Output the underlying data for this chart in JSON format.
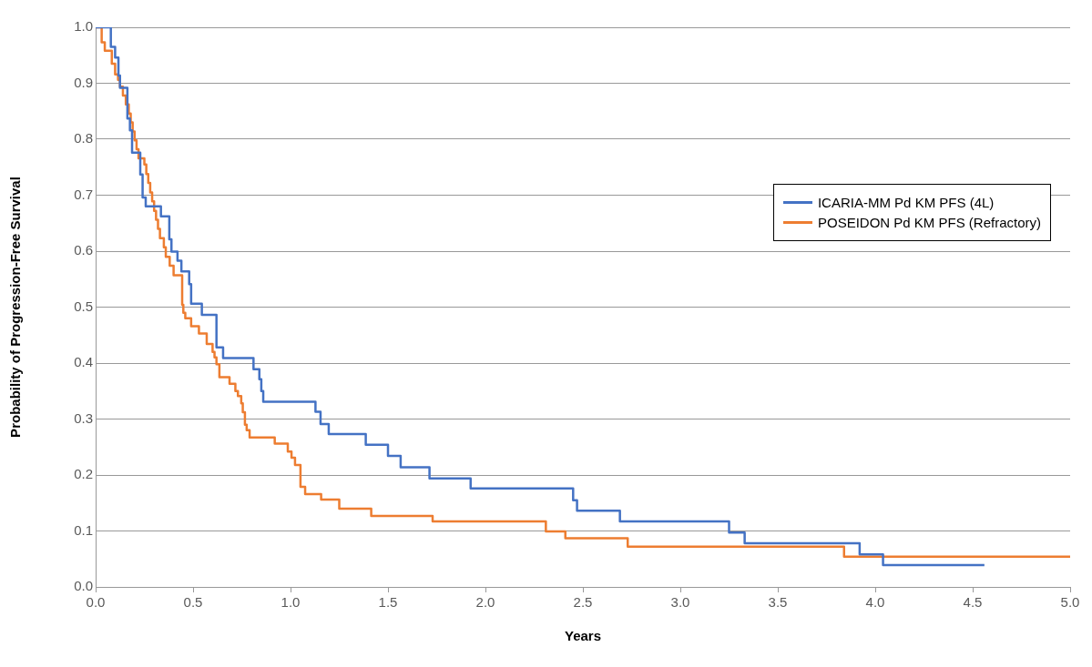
{
  "chart_data": {
    "type": "step",
    "xlabel": "Years",
    "ylabel": "Probability of Progression-Free Survival",
    "xlim": [
      0,
      5
    ],
    "xticks": [
      {
        "value": 0,
        "label": "0.0"
      },
      0.5,
      {
        "value": 1,
        "label": "1.0"
      },
      1.5,
      {
        "value": 2,
        "label": "2.0"
      },
      2.5,
      {
        "value": 3,
        "label": "3.0"
      },
      3.5,
      {
        "value": 4,
        "label": "4.0"
      },
      4.5,
      {
        "value": 5,
        "label": "5.0"
      }
    ],
    "ylim": [
      0,
      1
    ],
    "yticks": [
      {
        "value": 0,
        "label": "0.0"
      },
      0.1,
      0.2,
      0.3,
      0.4,
      0.5,
      0.6,
      0.7,
      0.8,
      0.9,
      {
        "value": 1,
        "label": "1.0"
      }
    ],
    "grid": "y",
    "legend": "right",
    "marker": "none",
    "series": [
      {
        "name": "ICARIA-MM Pd KM PFS (4L)",
        "color": "#4472c4",
        "x": [
          0,
          0.078,
          0.1,
          0.117,
          0.125,
          0.163,
          0.176,
          0.187,
          0.229,
          0.241,
          0.257,
          0.335,
          0.378,
          0.389,
          0.42,
          0.44,
          0.48,
          0.49,
          0.545,
          0.62,
          0.654,
          0.81,
          0.84,
          0.85,
          0.86,
          1.128,
          1.154,
          1.196,
          1.386,
          1.5,
          1.565,
          1.713,
          1.924,
          2.45,
          2.47,
          2.69,
          3.25,
          3.33,
          3.92,
          4.04,
          4.56
        ],
        "values": [
          1,
          0.965,
          0.946,
          0.914,
          0.892,
          0.837,
          0.816,
          0.776,
          0.737,
          0.696,
          0.68,
          0.662,
          0.621,
          0.599,
          0.583,
          0.564,
          0.541,
          0.506,
          0.486,
          0.428,
          0.409,
          0.389,
          0.371,
          0.35,
          0.331,
          0.313,
          0.291,
          0.273,
          0.254,
          0.234,
          0.214,
          0.194,
          0.176,
          0.155,
          0.136,
          0.117,
          0.097,
          0.078,
          0.058,
          0.039,
          0.039
        ]
      },
      {
        "name": "POSEIDON Pd KM PFS (Refractory)",
        "color": "#ed7d31",
        "x": [
          0,
          0.031,
          0.047,
          0.083,
          0.1,
          0.115,
          0.125,
          0.14,
          0.155,
          0.17,
          0.18,
          0.19,
          0.2,
          0.21,
          0.22,
          0.25,
          0.26,
          0.27,
          0.28,
          0.29,
          0.3,
          0.31,
          0.32,
          0.33,
          0.35,
          0.36,
          0.38,
          0.4,
          0.444,
          0.45,
          0.46,
          0.49,
          0.53,
          0.57,
          0.6,
          0.61,
          0.62,
          0.635,
          0.687,
          0.717,
          0.73,
          0.747,
          0.755,
          0.766,
          0.775,
          0.79,
          0.919,
          0.986,
          1.005,
          1.023,
          1.051,
          1.075,
          1.157,
          1.25,
          1.414,
          1.729,
          2.31,
          2.41,
          2.73,
          3.84,
          5.0
        ],
        "values": [
          1,
          0.973,
          0.958,
          0.935,
          0.916,
          0.906,
          0.894,
          0.878,
          0.862,
          0.846,
          0.83,
          0.814,
          0.798,
          0.782,
          0.766,
          0.755,
          0.738,
          0.722,
          0.705,
          0.689,
          0.672,
          0.656,
          0.64,
          0.623,
          0.607,
          0.59,
          0.574,
          0.557,
          0.504,
          0.49,
          0.48,
          0.466,
          0.453,
          0.434,
          0.42,
          0.41,
          0.398,
          0.375,
          0.363,
          0.35,
          0.341,
          0.328,
          0.312,
          0.29,
          0.28,
          0.267,
          0.256,
          0.242,
          0.231,
          0.218,
          0.179,
          0.166,
          0.156,
          0.14,
          0.127,
          0.117,
          0.099,
          0.087,
          0.072,
          0.054,
          0.054
        ]
      }
    ]
  }
}
